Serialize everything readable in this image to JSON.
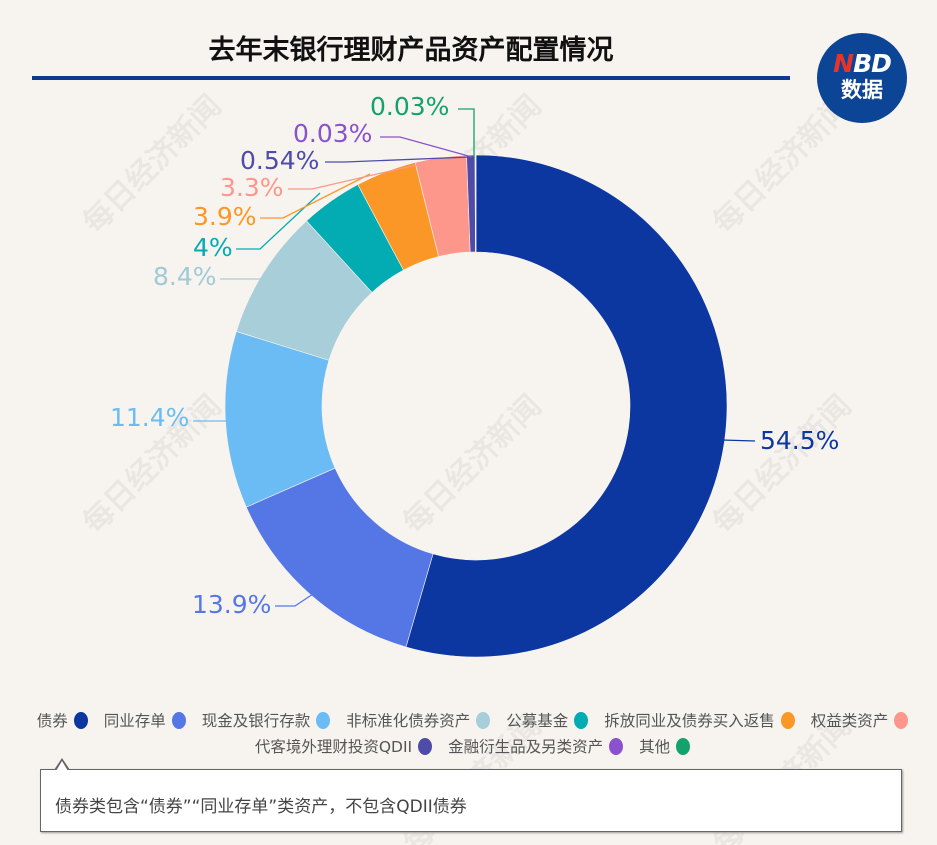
{
  "title": "去年末银行理财产品资产配置情况",
  "logo": {
    "top": "NBD",
    "bottom": "数据"
  },
  "watermark": "每日经济新闻",
  "chart_data": {
    "type": "pie",
    "donut": true,
    "title": "去年末银行理财产品资产配置情况",
    "categories": [
      "债券",
      "同业存单",
      "现金及银行存款",
      "非标准化债券资产",
      "公募基金",
      "拆放同业及债券买入返售",
      "权益类资产",
      "代客境外理财投资QDII",
      "金融衍生品及另类资产",
      "其他"
    ],
    "values": [
      54.5,
      13.9,
      11.4,
      8.4,
      4,
      3.9,
      3.3,
      0.54,
      0.03,
      0.03
    ],
    "labels": [
      "54.5%",
      "13.9%",
      "11.4%",
      "8.4%",
      "4%",
      "3.9%",
      "3.3%",
      "0.54%",
      "0.03%",
      "0.03%"
    ],
    "colors": [
      "#0c36a0",
      "#5577e6",
      "#6bbcf5",
      "#a8ced9",
      "#03acb3",
      "#fb9726",
      "#fd968b",
      "#4e4ca8",
      "#8a52cc",
      "#13a26c"
    ],
    "legend_position": "bottom"
  },
  "note": "债券类包含“债券”“同业存单”类资产，不包含QDII债券"
}
